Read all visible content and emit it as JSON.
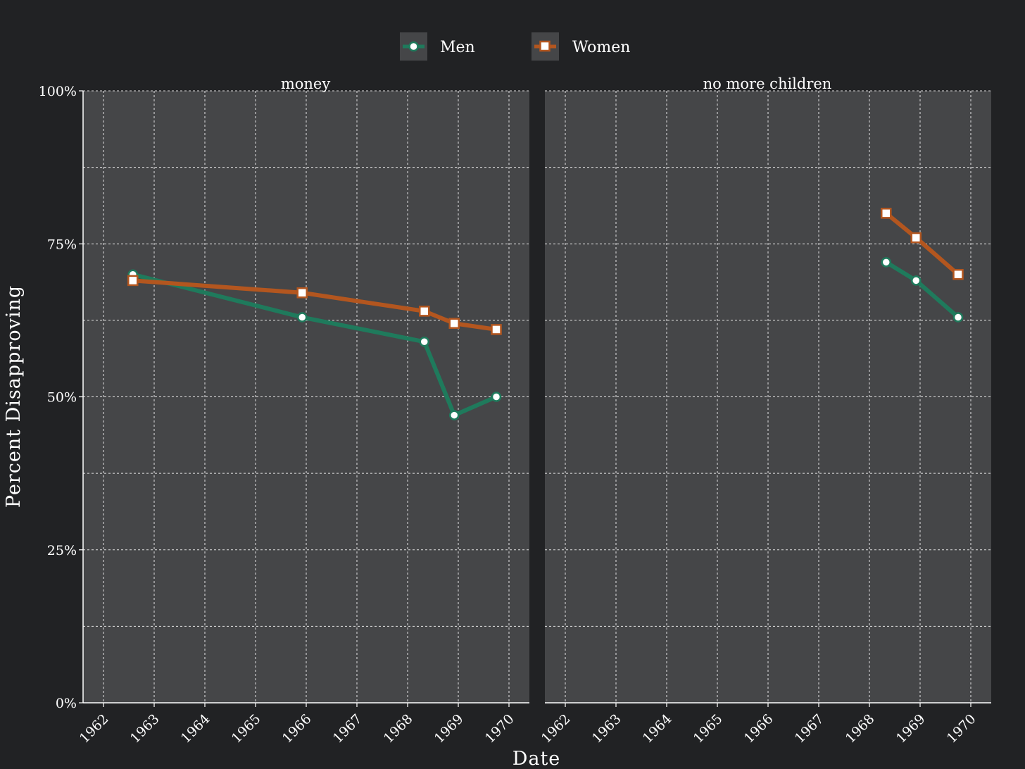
{
  "colors": {
    "background": "#212224",
    "panel": "#454648",
    "grid": "#ffffff",
    "men": "#1f7a5c",
    "women": "#b3561f",
    "marker_fill": "#ffffff"
  },
  "chart_data": {
    "type": "line",
    "xlabel": "Date",
    "ylabel": "Percent Disapproving",
    "xlim": [
      1961.6,
      1970.4
    ],
    "ylim": [
      0,
      100
    ],
    "x_ticks": [
      "1962",
      "1963",
      "1964",
      "1965",
      "1966",
      "1967",
      "1968",
      "1969",
      "1970"
    ],
    "y_ticks": [
      "0%",
      "25%",
      "50%",
      "75%",
      "100%"
    ],
    "legend": {
      "position": "top",
      "entries": [
        {
          "label": "Men",
          "marker": "circle",
          "color": "#1f7a5c"
        },
        {
          "label": "Women",
          "marker": "square",
          "color": "#b3561f"
        }
      ]
    },
    "grid": true,
    "facets": [
      {
        "title": "money",
        "series": [
          {
            "name": "Men",
            "x": [
              1962.58,
              1965.92,
              1968.33,
              1968.92,
              1969.75
            ],
            "values": [
              70,
              63,
              59,
              47,
              50
            ]
          },
          {
            "name": "Women",
            "x": [
              1962.58,
              1965.92,
              1968.33,
              1968.92,
              1969.75
            ],
            "values": [
              69,
              67,
              64,
              62,
              61
            ]
          }
        ]
      },
      {
        "title": "no more children",
        "series": [
          {
            "name": "Men",
            "x": [
              1968.33,
              1968.92,
              1969.75
            ],
            "values": [
              72,
              69,
              63
            ]
          },
          {
            "name": "Women",
            "x": [
              1968.33,
              1968.92,
              1969.75
            ],
            "values": [
              80,
              76,
              70
            ]
          }
        ]
      }
    ]
  }
}
